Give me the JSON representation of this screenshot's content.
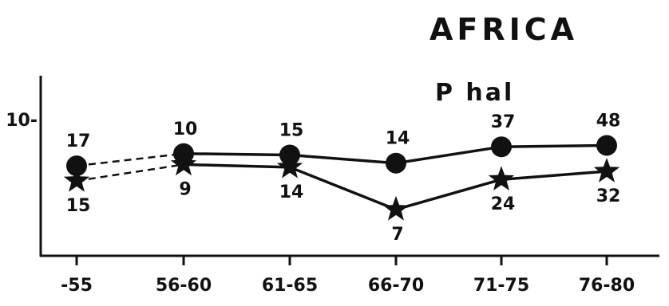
{
  "chart_data": {
    "type": "line",
    "title": "AFRICA",
    "subtitle": "P hal",
    "categories": [
      "-55",
      "56-60",
      "61-65",
      "66-70",
      "71-75",
      "76-80"
    ],
    "y_tick_labels": [
      "10-"
    ],
    "y_ticks": [
      10
    ],
    "ylim": [
      0,
      12.5
    ],
    "grid": false,
    "series": [
      {
        "marker": "circle",
        "values": [
          6.6,
          7.5,
          7.4,
          6.8,
          8.0,
          8.1
        ],
        "data_labels": [
          "17",
          "10",
          "15",
          "14",
          "37",
          "48"
        ],
        "line_styles": [
          "dashed",
          "solid",
          "solid",
          "solid",
          "solid"
        ]
      },
      {
        "marker": "star",
        "values": [
          5.5,
          6.7,
          6.5,
          3.4,
          5.6,
          6.2
        ],
        "data_labels": [
          "15",
          "9",
          "14",
          "7",
          "24",
          "32"
        ],
        "line_styles": [
          "dashed",
          "solid",
          "solid",
          "solid",
          "solid"
        ]
      }
    ],
    "colors": {
      "ink": "#111111",
      "background": "#ffffff"
    }
  }
}
